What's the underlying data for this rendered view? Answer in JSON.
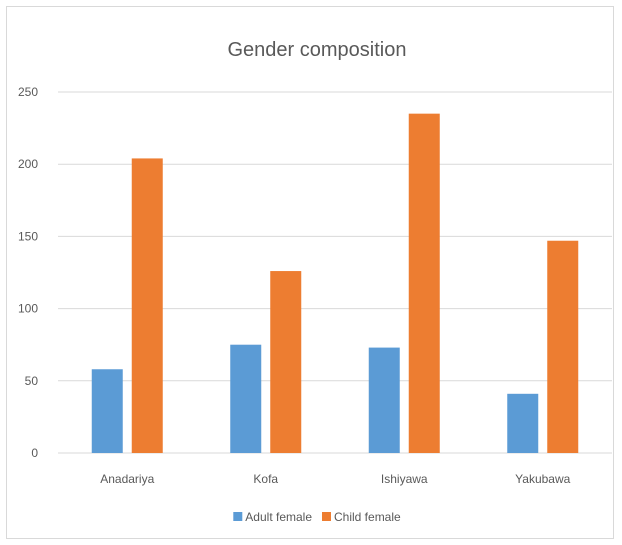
{
  "chart_data": {
    "type": "bar",
    "title": "Gender composition",
    "xlabel": "",
    "ylabel": "",
    "categories": [
      "Anadariya",
      "Kofa",
      "Ishiyawa",
      "Yakubawa"
    ],
    "series": [
      {
        "name": "Adult female",
        "color": "#5b9bd5",
        "values": [
          58,
          75,
          73,
          41
        ]
      },
      {
        "name": "Child female",
        "color": "#ed7d31",
        "values": [
          204,
          126,
          235,
          147
        ]
      }
    ],
    "ylim": [
      0,
      250
    ],
    "yticks": [
      0,
      50,
      100,
      150,
      200,
      250
    ],
    "grid": true,
    "legend_position": "bottom"
  }
}
